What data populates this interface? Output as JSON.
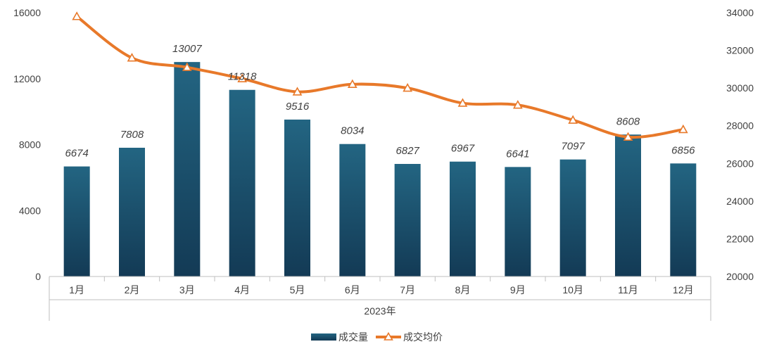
{
  "chart_data": {
    "type": "bar+line",
    "group_label": "2023年",
    "categories": [
      "1月",
      "2月",
      "3月",
      "4月",
      "5月",
      "6月",
      "7月",
      "8月",
      "9月",
      "10月",
      "11月",
      "12月"
    ],
    "series": [
      {
        "name": "成交量",
        "type": "bar",
        "axis": "left",
        "values": [
          6674,
          7808,
          13007,
          11318,
          9516,
          8034,
          6827,
          6967,
          6641,
          7097,
          8608,
          6856
        ],
        "color": "#1e5a78"
      },
      {
        "name": "成交均价",
        "type": "line",
        "axis": "right",
        "values": [
          33800,
          31600,
          31100,
          30500,
          29800,
          30200,
          30000,
          29200,
          29100,
          28300,
          27400,
          27800
        ],
        "color": "#e8792a"
      }
    ],
    "y_left": {
      "min": 0,
      "max": 16000,
      "ticks": [
        0,
        4000,
        8000,
        12000,
        16000
      ]
    },
    "y_right": {
      "min": 20000,
      "max": 34000,
      "ticks": [
        20000,
        22000,
        24000,
        26000,
        28000,
        30000,
        32000,
        34000
      ]
    },
    "legend_position": "bottom-center"
  }
}
